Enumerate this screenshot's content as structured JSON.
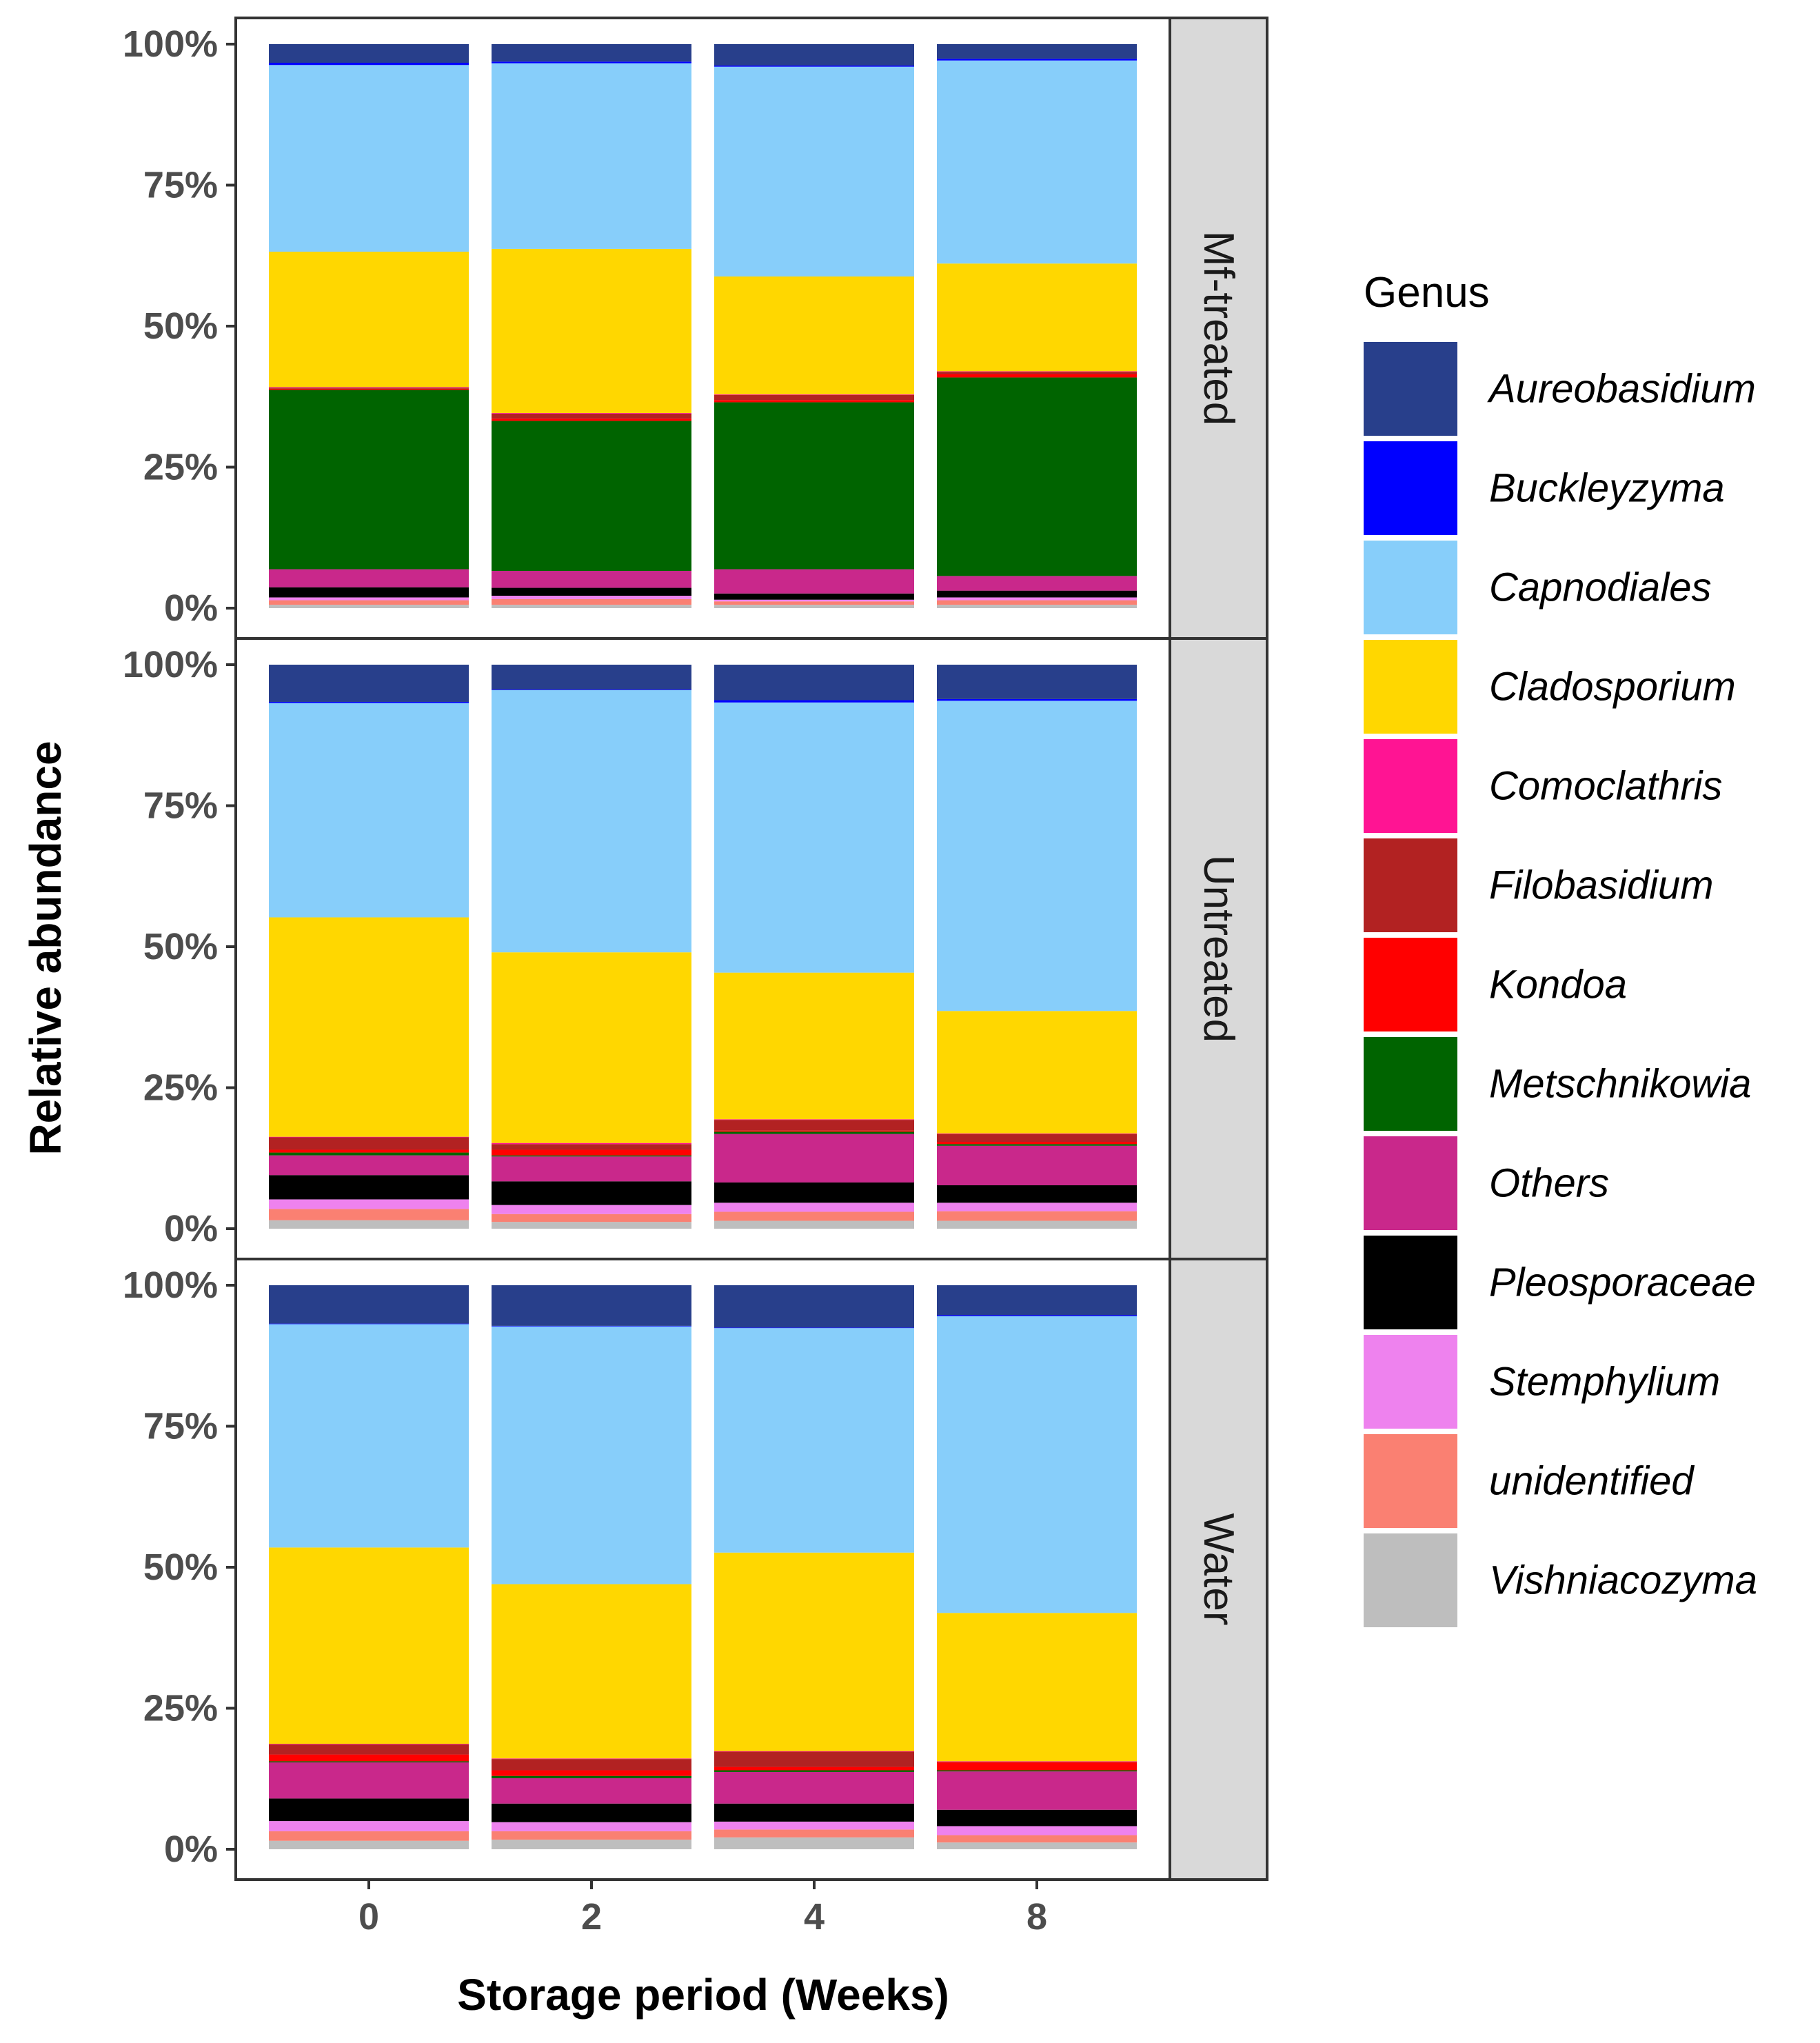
{
  "chart_data": {
    "type": "bar",
    "stacked": true,
    "xlabel": "Storage period (Weeks)",
    "ylabel": "Relative abundance",
    "categories": [
      "0",
      "2",
      "4",
      "8"
    ],
    "ylim": [
      0,
      1
    ],
    "y_ticks": [
      "0%",
      "25%",
      "50%",
      "75%",
      "100%"
    ],
    "legend_title": "Genus",
    "legend_position": "right",
    "genera": [
      {
        "name": "Aureobasidium",
        "color": "#283F8B"
      },
      {
        "name": "Buckleyzyma",
        "color": "#0000FF"
      },
      {
        "name": "Capnodiales",
        "color": "#87CEFA"
      },
      {
        "name": "Cladosporium",
        "color": "#FFD700"
      },
      {
        "name": "Comoclathris",
        "color": "#FF1493"
      },
      {
        "name": "Filobasidium",
        "color": "#B22222"
      },
      {
        "name": "Kondoa",
        "color": "#FF0000"
      },
      {
        "name": "Metschnikowia",
        "color": "#006400"
      },
      {
        "name": "Others",
        "color": "#C9288B"
      },
      {
        "name": "Pleosporaceae",
        "color": "#000000"
      },
      {
        "name": "Stemphylium",
        "color": "#EE82EE"
      },
      {
        "name": "unidentified",
        "color": "#FA8072"
      },
      {
        "name": "Vishniacozyma",
        "color": "#BEBEBE"
      }
    ],
    "stack_order_bottom_to_top": [
      "Vishniacozyma",
      "unidentified",
      "Stemphylium",
      "Pleosporaceae",
      "Others",
      "Metschnikowia",
      "Kondoa",
      "Filobasidium",
      "Comoclathris",
      "Cladosporium",
      "Capnodiales",
      "Buckleyzyma",
      "Aureobasidium"
    ],
    "panels": [
      {
        "label": "Mf-treated",
        "bars": [
          {
            "week": "0",
            "values": {
              "Vishniacozyma": 0.6,
              "unidentified": 0.8,
              "Stemphylium": 0.5,
              "Pleosporaceae": 1.8,
              "Others": 3.2,
              "Metschnikowia": 31.8,
              "Kondoa": 0.2,
              "Filobasidium": 0.2,
              "Comoclathris": 0.1,
              "Cladosporium": 24.0,
              "Capnodiales": 33.1,
              "Buckleyzyma": 0.4,
              "Aureobasidium": 3.3
            }
          },
          {
            "week": "2",
            "values": {
              "Vishniacozyma": 0.6,
              "unidentified": 1.0,
              "Stemphylium": 0.6,
              "Pleosporaceae": 1.4,
              "Others": 3.0,
              "Metschnikowia": 26.6,
              "Kondoa": 0.4,
              "Filobasidium": 0.9,
              "Comoclathris": 0.1,
              "Cladosporium": 29.1,
              "Capnodiales": 32.9,
              "Buckleyzyma": 0.3,
              "Aureobasidium": 3.1
            }
          },
          {
            "week": "4",
            "values": {
              "Vishniacozyma": 0.6,
              "unidentified": 0.6,
              "Stemphylium": 0.3,
              "Pleosporaceae": 1.1,
              "Others": 4.3,
              "Metschnikowia": 29.6,
              "Kondoa": 0.4,
              "Filobasidium": 0.9,
              "Comoclathris": 0.1,
              "Cladosporium": 20.9,
              "Capnodiales": 37.2,
              "Buckleyzyma": 0.2,
              "Aureobasidium": 3.8
            }
          },
          {
            "week": "8",
            "values": {
              "Vishniacozyma": 0.6,
              "unidentified": 0.8,
              "Stemphylium": 0.5,
              "Pleosporaceae": 1.2,
              "Others": 2.6,
              "Metschnikowia": 35.2,
              "Kondoa": 0.6,
              "Filobasidium": 0.4,
              "Comoclathris": 0.1,
              "Cladosporium": 19.1,
              "Capnodiales": 36.0,
              "Buckleyzyma": 0.3,
              "Aureobasidium": 2.6
            }
          }
        ]
      },
      {
        "label": "Untreated",
        "bars": [
          {
            "week": "0",
            "values": {
              "Vishniacozyma": 1.5,
              "unidentified": 2.0,
              "Stemphylium": 1.7,
              "Pleosporaceae": 4.3,
              "Others": 3.5,
              "Metschnikowia": 0.5,
              "Kondoa": 0.5,
              "Filobasidium": 2.2,
              "Comoclathris": 0.1,
              "Cladosporium": 38.9,
              "Capnodiales": 38.0,
              "Buckleyzyma": 0.2,
              "Aureobasidium": 6.6
            }
          },
          {
            "week": "2",
            "values": {
              "Vishniacozyma": 1.2,
              "unidentified": 1.4,
              "Stemphylium": 1.6,
              "Pleosporaceae": 4.2,
              "Others": 4.4,
              "Metschnikowia": 0.2,
              "Kondoa": 1.0,
              "Filobasidium": 1.0,
              "Comoclathris": 0.2,
              "Cladosporium": 33.8,
              "Capnodiales": 46.5,
              "Buckleyzyma": 0.1,
              "Aureobasidium": 4.4
            }
          },
          {
            "week": "4",
            "values": {
              "Vishniacozyma": 1.4,
              "unidentified": 1.6,
              "Stemphylium": 1.6,
              "Pleosporaceae": 3.6,
              "Others": 8.6,
              "Metschnikowia": 0.4,
              "Kondoa": 0.2,
              "Filobasidium": 1.9,
              "Comoclathris": 0.1,
              "Cladosporium": 26.0,
              "Capnodiales": 47.9,
              "Buckleyzyma": 0.4,
              "Aureobasidium": 6.3
            }
          },
          {
            "week": "8",
            "values": {
              "Vishniacozyma": 1.4,
              "unidentified": 1.7,
              "Stemphylium": 1.5,
              "Pleosporaceae": 3.1,
              "Others": 7.0,
              "Metschnikowia": 0.3,
              "Kondoa": 0.4,
              "Filobasidium": 1.4,
              "Comoclathris": 0.1,
              "Cladosporium": 21.7,
              "Capnodiales": 55.0,
              "Buckleyzyma": 0.3,
              "Aureobasidium": 6.1
            }
          }
        ]
      },
      {
        "label": "Water",
        "bars": [
          {
            "week": "0",
            "values": {
              "Vishniacozyma": 1.5,
              "unidentified": 1.7,
              "Stemphylium": 1.8,
              "Pleosporaceae": 4.0,
              "Others": 6.4,
              "Metschnikowia": 0.2,
              "Kondoa": 1.2,
              "Filobasidium": 1.8,
              "Comoclathris": 0.1,
              "Cladosporium": 34.8,
              "Capnodiales": 39.6,
              "Buckleyzyma": 0.1,
              "Aureobasidium": 6.8
            }
          },
          {
            "week": "2",
            "values": {
              "Vishniacozyma": 1.7,
              "unidentified": 1.5,
              "Stemphylium": 1.6,
              "Pleosporaceae": 3.3,
              "Others": 4.5,
              "Metschnikowia": 0.4,
              "Kondoa": 1.0,
              "Filobasidium": 2.0,
              "Comoclathris": 0.1,
              "Cladosporium": 30.9,
              "Capnodiales": 45.7,
              "Buckleyzyma": 0.1,
              "Aureobasidium": 7.2
            }
          },
          {
            "week": "4",
            "values": {
              "Vishniacozyma": 2.1,
              "unidentified": 1.4,
              "Stemphylium": 1.4,
              "Pleosporaceae": 3.2,
              "Others": 5.6,
              "Metschnikowia": 0.3,
              "Kondoa": 0.6,
              "Filobasidium": 2.7,
              "Comoclathris": 0.1,
              "Cladosporium": 35.2,
              "Capnodiales": 39.8,
              "Buckleyzyma": 0.1,
              "Aureobasidium": 7.5
            }
          },
          {
            "week": "8",
            "values": {
              "Vishniacozyma": 1.2,
              "unidentified": 1.3,
              "Stemphylium": 1.6,
              "Pleosporaceae": 2.9,
              "Others": 6.8,
              "Metschnikowia": 0.2,
              "Kondoa": 1.4,
              "Filobasidium": 0.1,
              "Comoclathris": 0.1,
              "Cladosporium": 26.3,
              "Capnodiales": 52.6,
              "Buckleyzyma": 0.2,
              "Aureobasidium": 5.3
            }
          }
        ]
      }
    ]
  }
}
